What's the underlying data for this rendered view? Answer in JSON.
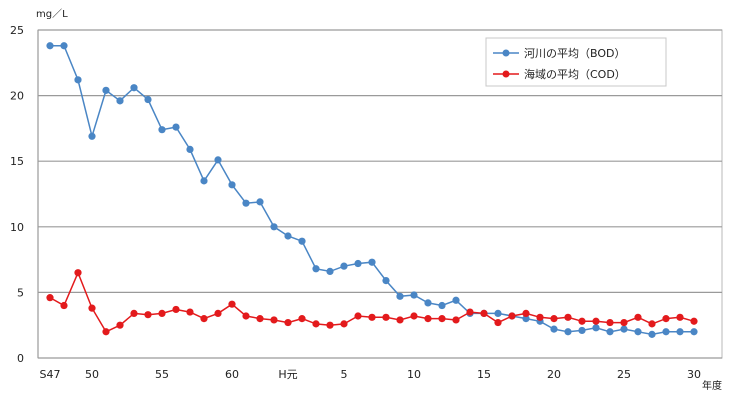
{
  "chart_data": {
    "type": "line",
    "title": "",
    "ylabel": "mg／L",
    "xlabel": "年度",
    "ylim": [
      0,
      25
    ],
    "y_ticks": [
      0,
      5,
      10,
      15,
      20,
      25
    ],
    "grid": true,
    "legend_position": "top-right",
    "x": [
      "S47",
      "48",
      "49",
      "50",
      "51",
      "52",
      "53",
      "54",
      "55",
      "56",
      "57",
      "58",
      "59",
      "60",
      "61",
      "62",
      "63",
      "H元",
      "2",
      "3",
      "4",
      "5",
      "6",
      "7",
      "8",
      "9",
      "10",
      "11",
      "12",
      "13",
      "14",
      "15",
      "16",
      "17",
      "18",
      "19",
      "20",
      "21",
      "22",
      "23",
      "24",
      "25",
      "26",
      "27",
      "28",
      "29",
      "30"
    ],
    "x_tick_labels": [
      {
        "index": 0,
        "label": "S47"
      },
      {
        "index": 3,
        "label": "50"
      },
      {
        "index": 8,
        "label": "55"
      },
      {
        "index": 13,
        "label": "60"
      },
      {
        "index": 17,
        "label": "H元"
      },
      {
        "index": 21,
        "label": "5"
      },
      {
        "index": 26,
        "label": "10"
      },
      {
        "index": 31,
        "label": "15"
      },
      {
        "index": 36,
        "label": "20"
      },
      {
        "index": 41,
        "label": "25"
      },
      {
        "index": 46,
        "label": "30"
      }
    ],
    "series": [
      {
        "name": "河川の平均（BOD）",
        "color": "#4a86c5",
        "values": [
          23.8,
          23.8,
          21.2,
          16.9,
          20.4,
          19.6,
          20.6,
          19.7,
          17.4,
          17.6,
          15.9,
          13.5,
          15.1,
          13.2,
          11.8,
          11.9,
          10.0,
          9.3,
          8.9,
          6.8,
          6.6,
          7.0,
          7.2,
          7.3,
          5.9,
          4.7,
          4.8,
          4.2,
          4.0,
          4.4,
          3.4,
          3.4,
          3.4,
          3.2,
          3.0,
          2.8,
          2.2,
          2.0,
          2.1,
          2.3,
          2.0,
          2.2,
          2.0,
          1.8,
          2.0,
          2.0,
          2.0
        ]
      },
      {
        "name": "海域の平均（COD）",
        "color": "#e31a1c",
        "values": [
          4.6,
          4.0,
          6.5,
          3.8,
          2.0,
          2.5,
          3.4,
          3.3,
          3.4,
          3.7,
          3.5,
          3.0,
          3.4,
          4.1,
          3.2,
          3.0,
          2.9,
          2.7,
          3.0,
          2.6,
          2.5,
          2.6,
          3.2,
          3.1,
          3.1,
          2.9,
          3.2,
          3.0,
          3.0,
          2.9,
          3.5,
          3.4,
          2.7,
          3.2,
          3.4,
          3.1,
          3.0,
          3.1,
          2.8,
          2.8,
          2.7,
          2.7,
          3.1,
          2.6,
          3.0,
          3.1,
          2.8
        ]
      }
    ]
  }
}
